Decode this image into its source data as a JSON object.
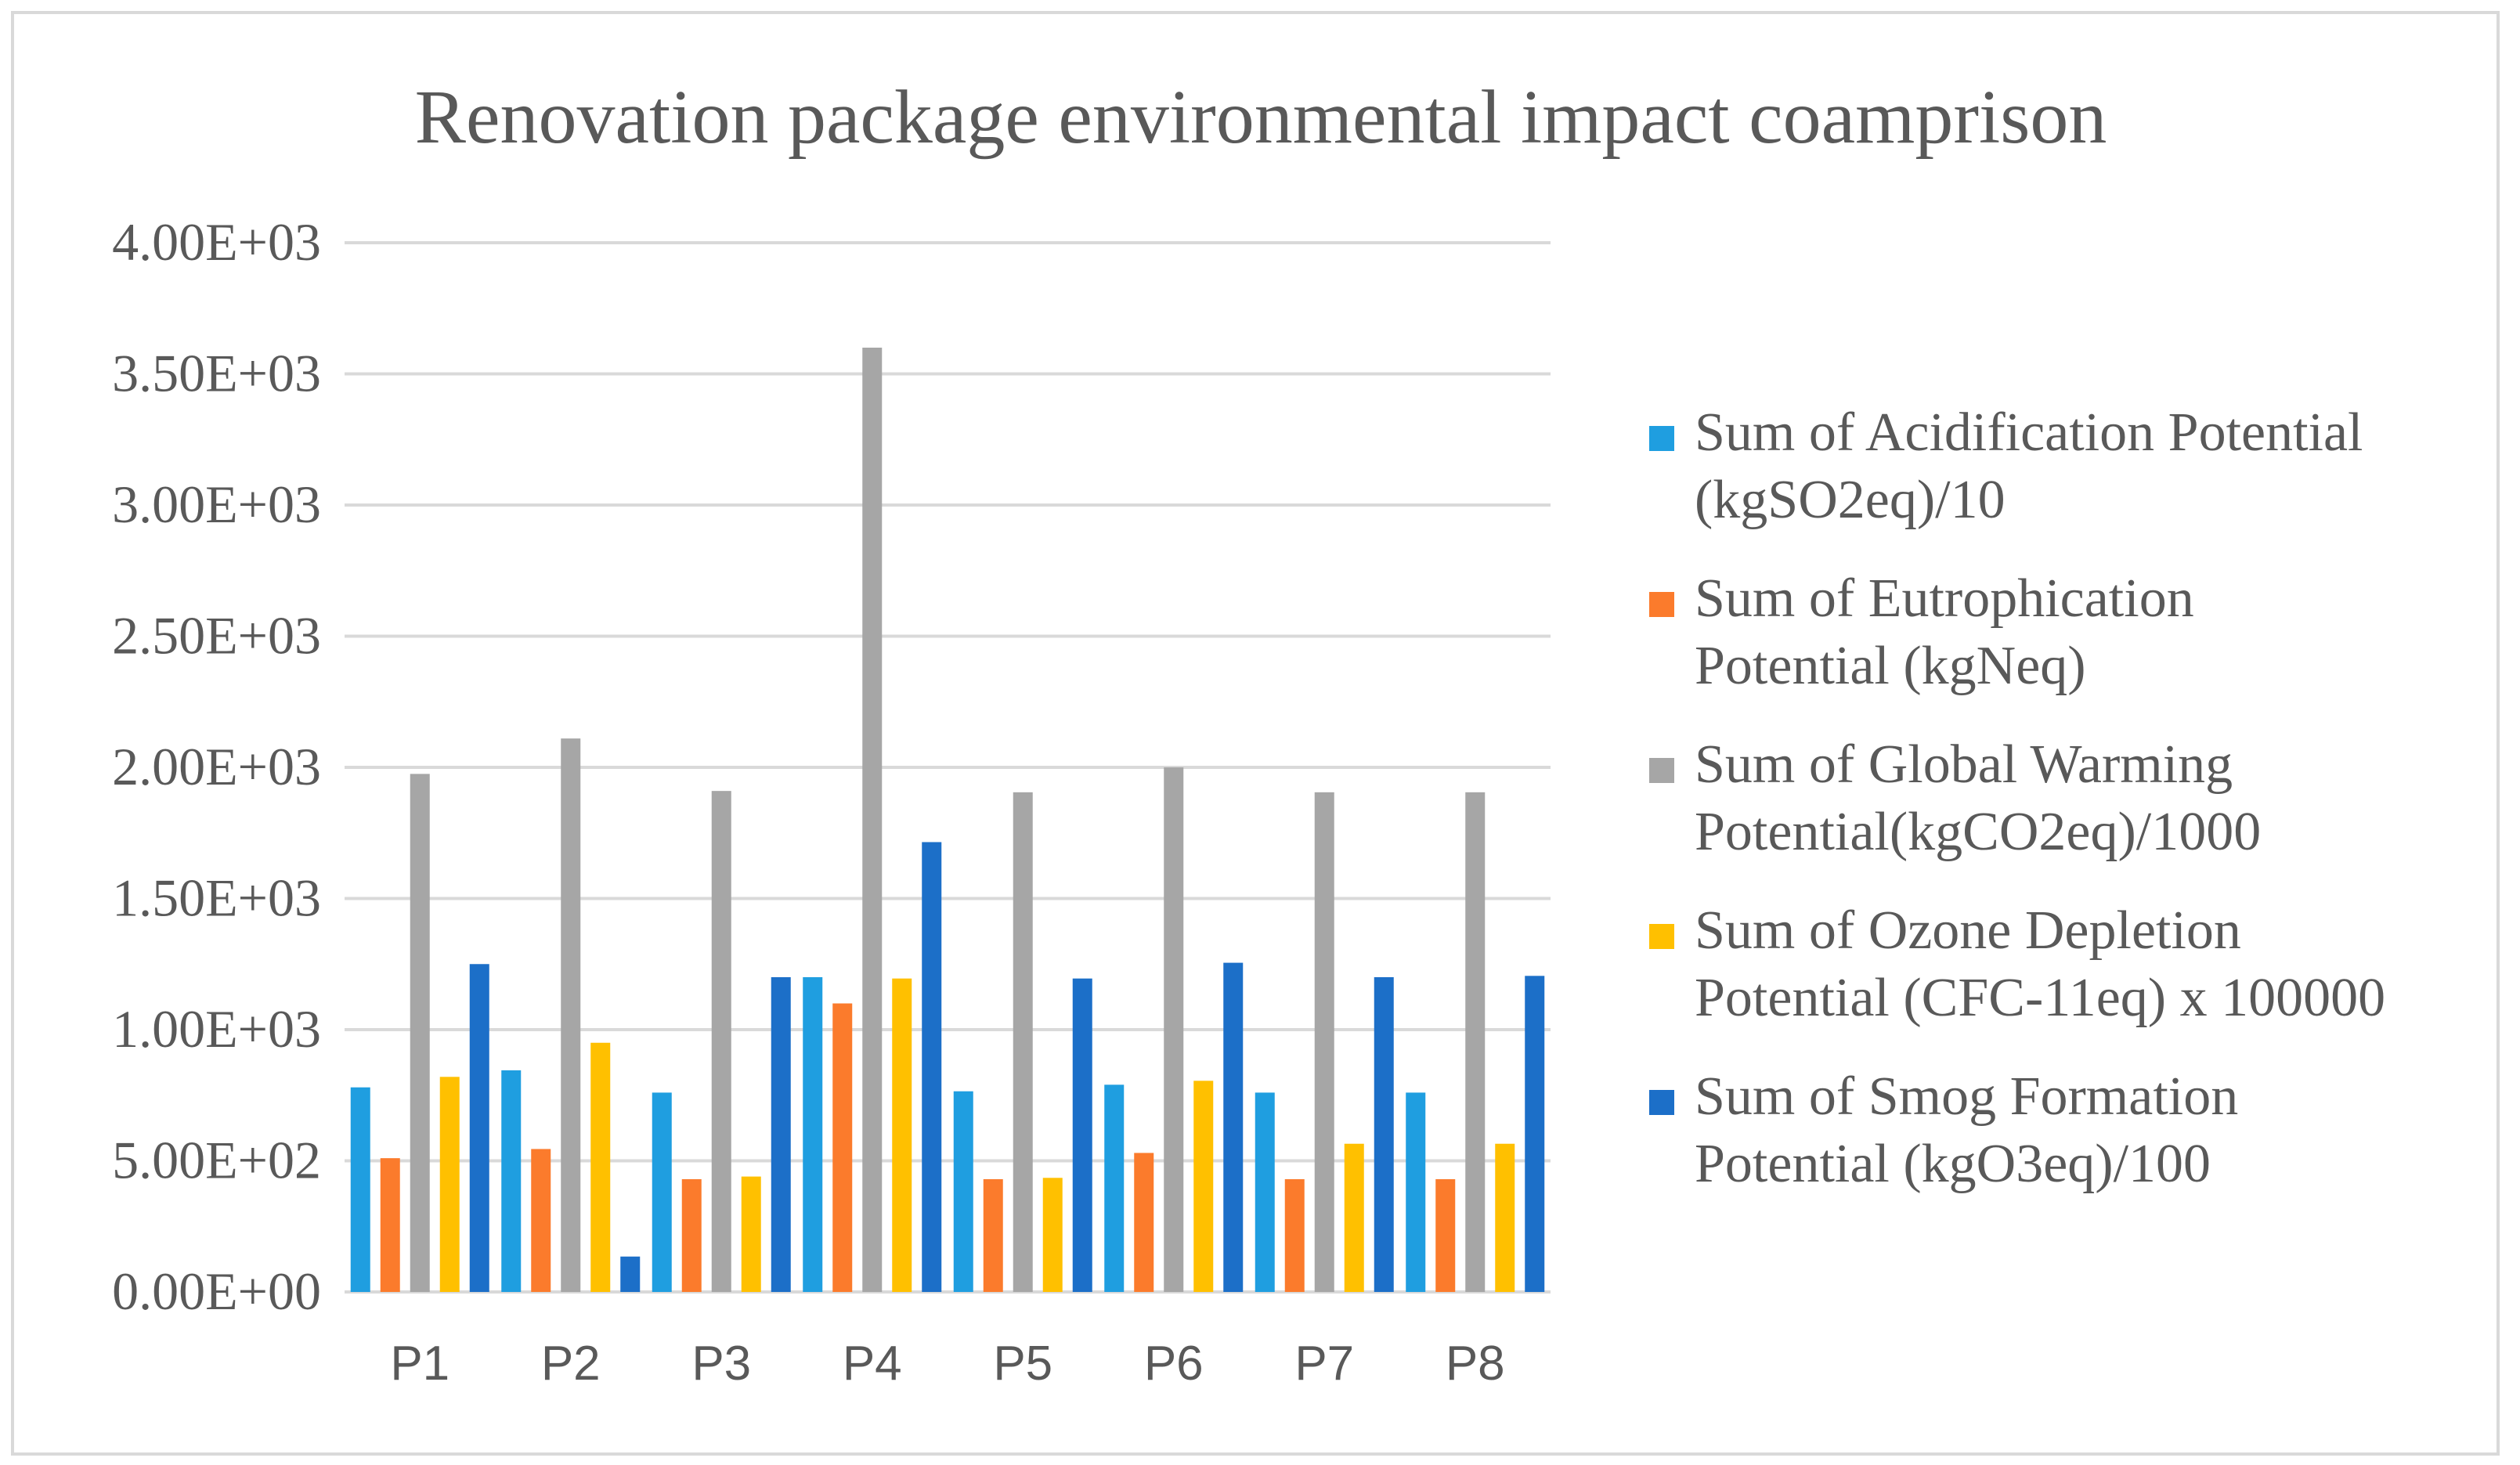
{
  "chart_data": {
    "type": "bar",
    "title": "Renovation package environmental impact coamprison",
    "xlabel": "",
    "ylabel": "",
    "ylim": [
      0,
      4000
    ],
    "yticks": [
      0,
      500,
      1000,
      1500,
      2000,
      2500,
      3000,
      3500,
      4000
    ],
    "ytick_labels": [
      "0.00E+00",
      "5.00E+02",
      "1.00E+03",
      "1.50E+03",
      "2.00E+03",
      "2.50E+03",
      "3.00E+03",
      "3.50E+03",
      "4.00E+03"
    ],
    "grid": true,
    "legend_position": "right",
    "categories": [
      "P1",
      "P2",
      "P3",
      "P4",
      "P5",
      "P6",
      "P7",
      "P8"
    ],
    "series": [
      {
        "name": "Sum of Acidification Potential (kgSO2eq)/10",
        "color": "#1f9ee0",
        "values": [
          780,
          845,
          760,
          1200,
          765,
          790,
          760,
          760
        ]
      },
      {
        "name": "Sum of Eutrophication Potential (kgNeq)",
        "color": "#fb7b2c",
        "values": [
          510,
          545,
          430,
          1100,
          430,
          530,
          430,
          430
        ]
      },
      {
        "name": "Sum of Global Warming Potential(kgCO2eq)/1000",
        "color": "#a6a6a6",
        "values": [
          1975,
          2110,
          1910,
          3600,
          1905,
          2000,
          1905,
          1905
        ]
      },
      {
        "name": "Sum of Ozone Depletion Potential (CFC-11eq) x 100000",
        "color": "#ffc000",
        "values": [
          820,
          950,
          440,
          1195,
          435,
          805,
          565,
          565
        ]
      },
      {
        "name": "Sum of Smog Formation Potential (kgO3eq)/100",
        "color": "#1c6fc8",
        "values": [
          1250,
          135,
          1200,
          1715,
          1195,
          1255,
          1200,
          1205
        ]
      }
    ],
    "legend_lines": [
      [
        "Sum of Acidification Potential",
        "(kgSO2eq)/10"
      ],
      [
        "Sum of Eutrophication",
        "Potential (kgNeq)"
      ],
      [
        "Sum of Global Warming",
        "Potential(kgCO2eq)/1000"
      ],
      [
        "Sum of Ozone Depletion",
        "Potential (CFC-11eq) x 100000"
      ],
      [
        "Sum of Smog Formation",
        "Potential (kgO3eq)/100"
      ]
    ]
  }
}
